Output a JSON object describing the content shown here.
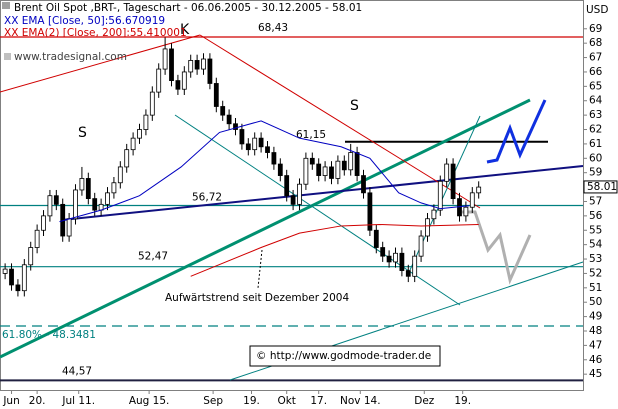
{
  "chart_data": {
    "type": "candlestick",
    "title": "Brent Oil Spot ,BRT-, Tageschart - 06.06.2005 - 30.12.2005 - 58.01",
    "y_axis_label": "USD",
    "watermark": "www.tradesignal.com",
    "copyright": "© http://www.godmode-trader.de",
    "annotations": [
      "S",
      "K",
      "S",
      "Aufwärtstrend seit Dezember 2004"
    ],
    "last_price": 58.01,
    "x": [
      0,
      2,
      4,
      6,
      8,
      10,
      12,
      14,
      16,
      18,
      20,
      22,
      24,
      26,
      28,
      30,
      32,
      34,
      36,
      38,
      40,
      42,
      44,
      46,
      48,
      50,
      52,
      54,
      56,
      58,
      60,
      62,
      64,
      66,
      68,
      70,
      72,
      74,
      76,
      78,
      80,
      82,
      84,
      86,
      88,
      90,
      92,
      94,
      96,
      98,
      100,
      102,
      104,
      106,
      108,
      110,
      112,
      114,
      116,
      118,
      120,
      122,
      124,
      126,
      128,
      130,
      132,
      134,
      136,
      138,
      140,
      142,
      144,
      146,
      148
    ],
    "ohlc": [
      [
        52.0,
        52.7,
        51.6,
        52.3
      ],
      [
        52.3,
        52.7,
        50.8,
        51.2
      ],
      [
        51.2,
        51.6,
        50.4,
        50.8
      ],
      [
        50.8,
        53.0,
        50.4,
        52.6
      ],
      [
        52.6,
        54.2,
        52.2,
        53.8
      ],
      [
        53.8,
        55.4,
        53.4,
        55.0
      ],
      [
        55.0,
        56.4,
        54.6,
        56.0
      ],
      [
        56.0,
        57.8,
        55.6,
        57.4
      ],
      [
        57.4,
        57.8,
        56.4,
        56.8
      ],
      [
        56.8,
        57.2,
        54.2,
        54.6
      ],
      [
        54.6,
        56.2,
        54.2,
        55.8
      ],
      [
        55.8,
        58.2,
        55.4,
        57.8
      ],
      [
        57.8,
        59.4,
        57.4,
        58.6
      ],
      [
        58.6,
        59.0,
        56.8,
        57.2
      ],
      [
        57.2,
        57.6,
        56.0,
        56.4
      ],
      [
        56.4,
        57.2,
        56.0,
        56.8
      ],
      [
        56.8,
        58.0,
        56.4,
        57.6
      ],
      [
        57.6,
        58.7,
        57.2,
        58.3
      ],
      [
        58.3,
        59.8,
        57.9,
        59.4
      ],
      [
        59.4,
        61.0,
        59.0,
        60.6
      ],
      [
        60.6,
        61.8,
        60.2,
        61.4
      ],
      [
        61.4,
        62.4,
        61.0,
        62.0
      ],
      [
        62.0,
        63.4,
        61.6,
        63.0
      ],
      [
        63.0,
        65.0,
        62.6,
        64.6
      ],
      [
        64.6,
        66.6,
        64.2,
        66.2
      ],
      [
        66.2,
        68.4,
        65.8,
        67.6
      ],
      [
        67.6,
        68.0,
        65.0,
        65.4
      ],
      [
        65.4,
        65.8,
        64.4,
        64.8
      ],
      [
        64.8,
        66.4,
        64.4,
        66.0
      ],
      [
        66.0,
        67.2,
        65.6,
        66.8
      ],
      [
        66.8,
        67.2,
        65.8,
        66.2
      ],
      [
        66.2,
        67.3,
        65.8,
        66.9
      ],
      [
        66.9,
        67.3,
        64.8,
        65.2
      ],
      [
        65.2,
        65.6,
        63.2,
        63.6
      ],
      [
        63.6,
        64.0,
        62.6,
        63.0
      ],
      [
        63.0,
        63.4,
        62.0,
        62.4
      ],
      [
        62.4,
        62.8,
        61.6,
        62.0
      ],
      [
        62.0,
        62.4,
        60.6,
        61.0
      ],
      [
        61.0,
        61.4,
        60.2,
        60.6
      ],
      [
        60.6,
        61.8,
        60.2,
        61.4
      ],
      [
        61.4,
        61.8,
        60.4,
        60.8
      ],
      [
        60.8,
        61.2,
        60.0,
        60.4
      ],
      [
        60.4,
        60.8,
        59.2,
        59.6
      ],
      [
        59.6,
        60.0,
        58.4,
        58.8
      ],
      [
        58.8,
        59.2,
        57.0,
        57.4
      ],
      [
        57.4,
        57.8,
        56.4,
        56.8
      ],
      [
        56.8,
        58.6,
        56.4,
        58.2
      ],
      [
        58.2,
        60.4,
        57.8,
        60.0
      ],
      [
        60.0,
        60.4,
        59.2,
        59.6
      ],
      [
        59.6,
        60.0,
        58.4,
        58.8
      ],
      [
        58.8,
        59.8,
        58.4,
        59.4
      ],
      [
        59.4,
        59.8,
        58.2,
        58.6
      ],
      [
        58.6,
        60.2,
        58.2,
        59.8
      ],
      [
        59.8,
        60.2,
        58.8,
        59.2
      ],
      [
        59.2,
        61.0,
        58.8,
        60.4
      ],
      [
        60.4,
        60.8,
        58.4,
        58.8
      ],
      [
        58.8,
        59.2,
        57.2,
        57.6
      ],
      [
        57.6,
        58.0,
        54.6,
        55.0
      ],
      [
        55.0,
        55.4,
        53.4,
        53.8
      ],
      [
        53.8,
        54.2,
        52.8,
        53.2
      ],
      [
        53.2,
        53.6,
        52.4,
        52.8
      ],
      [
        52.8,
        53.8,
        52.4,
        53.4
      ],
      [
        53.4,
        53.8,
        51.8,
        52.2
      ],
      [
        52.2,
        52.6,
        51.4,
        51.8
      ],
      [
        51.8,
        53.6,
        51.4,
        53.2
      ],
      [
        53.2,
        55.0,
        52.8,
        54.6
      ],
      [
        54.6,
        56.2,
        54.2,
        55.8
      ],
      [
        55.8,
        56.8,
        55.4,
        56.4
      ],
      [
        56.4,
        58.8,
        56.0,
        58.4
      ],
      [
        58.4,
        60.0,
        58.0,
        59.6
      ],
      [
        59.6,
        60.0,
        56.8,
        57.2
      ],
      [
        57.2,
        57.6,
        55.6,
        56.0
      ],
      [
        56.0,
        57.0,
        55.6,
        56.6
      ],
      [
        56.6,
        58.0,
        56.2,
        57.6
      ],
      [
        57.6,
        58.4,
        57.2,
        58.0
      ]
    ],
    "series": [
      {
        "name": "XX EMA [Close, 50]:56.670919",
        "color": "#0000c0",
        "x": [
          17,
          30,
          42,
          55,
          67,
          80,
          92,
          105,
          114,
          123,
          130,
          136,
          145
        ],
        "values": [
          55.6,
          56.4,
          57.4,
          59.4,
          61.8,
          62.6,
          61.4,
          60.8,
          60.0,
          57.6,
          56.9,
          56.5,
          56.7
        ]
      },
      {
        "name": "XX EMA(2) [Close, 200]:55.410001",
        "color": "#d00000",
        "x": [
          58,
          80,
          92,
          105,
          117,
          130,
          148
        ],
        "values": [
          51.8,
          53.8,
          54.8,
          55.3,
          55.4,
          55.3,
          55.4
        ]
      }
    ],
    "levels": [
      {
        "value": 68.43,
        "label": "68,43",
        "color": "#d00000"
      },
      {
        "value": 61.15,
        "label": "61,15",
        "color": "#000000"
      },
      {
        "value": 56.72,
        "label": "56,72",
        "color": "#008080"
      },
      {
        "value": 52.47,
        "label": "52,47",
        "color": "#008080"
      },
      {
        "value": 48.3481,
        "label": "61.80% - 48.3481",
        "color": "#008080"
      },
      {
        "value": 44.57,
        "label": "44,57",
        "color": "#202040"
      }
    ],
    "xlim": [
      -1.6,
      180.6
    ],
    "xticks": [
      {
        "value": 2,
        "label": "Jun"
      },
      {
        "value": 10,
        "label": "20."
      },
      {
        "value": 23,
        "label": "Jul 11."
      },
      {
        "value": 45,
        "label": "Aug 15."
      },
      {
        "value": 65,
        "label": "Sep"
      },
      {
        "value": 77,
        "label": "19."
      },
      {
        "value": 88,
        "label": "Okt"
      },
      {
        "value": 98,
        "label": "17."
      },
      {
        "value": 111,
        "label": "Nov 14."
      },
      {
        "value": 131,
        "label": "Dez"
      },
      {
        "value": 143,
        "label": "19."
      }
    ],
    "ylim": [
      43.9,
      71.0
    ],
    "yticks": [
      45,
      46,
      47,
      48,
      49,
      50,
      51,
      52,
      53,
      54,
      55,
      56,
      57,
      58,
      59,
      60,
      61,
      62,
      63,
      64,
      65,
      66,
      67,
      68,
      69
    ],
    "up_color": "#ffffff",
    "down_color": "#000000"
  }
}
